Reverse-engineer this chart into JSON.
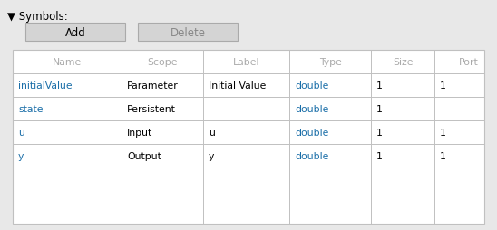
{
  "bg_color": "#e8e8e8",
  "header_text": "▼ Symbols:",
  "header_color": "#000000",
  "header_fontsize": 8.5,
  "button_add_label": "Add",
  "button_delete_label": "Delete",
  "button_bg": "#d4d4d4",
  "button_border": "#aaaaaa",
  "button_text_color_add": "#000000",
  "button_text_color_del": "#888888",
  "table_bg": "#ffffff",
  "table_border": "#c0c0c0",
  "table_header_color": "#aaaaaa",
  "col_headers": [
    "Name",
    "Scope",
    "Label",
    "Type",
    "Size",
    "Port"
  ],
  "rows": [
    [
      "initialValue",
      "Parameter",
      "Initial Value",
      "double",
      "1",
      "1"
    ],
    [
      "state",
      "Persistent",
      "-",
      "double",
      "1",
      "-"
    ],
    [
      "u",
      "Input",
      "u",
      "double",
      "1",
      "1"
    ],
    [
      "y",
      "Output",
      "y",
      "double",
      "1",
      "1"
    ]
  ],
  "row_text_color": "#000000",
  "blue_text_color": "#1a6ea8",
  "blue_cols": [
    0,
    3
  ],
  "fontsize": 7.8
}
